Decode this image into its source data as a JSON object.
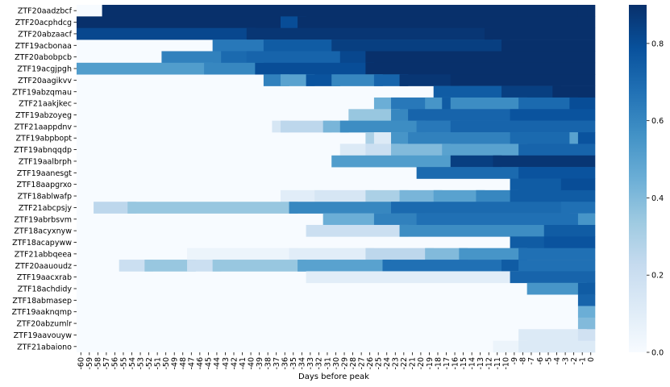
{
  "chart_data": {
    "type": "heatmap",
    "xlabel": "Days before peak",
    "ylabel": "",
    "x_categories": [
      -60,
      -59,
      -58,
      -57,
      -56,
      -55,
      -54,
      -53,
      -52,
      -51,
      -50,
      -49,
      -48,
      -47,
      -46,
      -45,
      -44,
      -43,
      -42,
      -41,
      -40,
      -39,
      -38,
      -37,
      -36,
      -35,
      -34,
      -33,
      -32,
      -31,
      -30,
      -29,
      -28,
      -27,
      -26,
      -25,
      -24,
      -23,
      -22,
      -21,
      -20,
      -19,
      -18,
      -17,
      -16,
      -15,
      -14,
      -13,
      -12,
      -11,
      -10,
      -9,
      -8,
      -7,
      -6,
      -5,
      -4,
      -3,
      -2,
      -1,
      0
    ],
    "x_ticklabels": [
      "-60",
      "-59",
      "-58",
      "-57",
      "-56",
      "-55",
      "-54",
      "-53",
      "-52",
      "-51",
      "-50",
      "-49",
      "-48",
      "-47",
      "-46",
      "-45",
      "-44",
      "-43",
      "-42",
      "-41",
      "-40",
      "-39",
      "-38",
      "-37",
      "-36",
      "-35",
      "-34",
      "-33",
      "-32",
      "-31",
      "-30",
      "-29",
      "-28",
      "-27",
      "-26",
      "-25",
      "-24",
      "-23",
      "-22",
      "-21",
      "-20",
      "-19",
      "-18",
      "-17",
      "-16",
      "-15",
      "-14",
      "-13",
      "-12",
      "-11",
      "-10",
      "-9",
      "-8",
      "-7",
      "-6",
      "-5",
      "-4",
      "-3",
      "-2",
      "-1",
      "0"
    ],
    "colorbar": {
      "min": 0.0,
      "max": 0.9,
      "ticks": [
        0.0,
        0.2,
        0.4,
        0.6,
        0.8
      ],
      "tick_labels": [
        "0.0",
        "0.2",
        "0.4",
        "0.6",
        "0.8"
      ],
      "colormap": "Blues"
    },
    "rows": [
      {
        "name": "ZTF20aadzbcf",
        "segments": [
          [
            -57,
            -1,
            0.92
          ],
          [
            -1,
            0,
            0.92
          ]
        ]
      },
      {
        "name": "ZTF20acphdcg",
        "segments": [
          [
            -60,
            -36,
            0.92
          ],
          [
            -36,
            -34,
            0.8
          ],
          [
            -34,
            0,
            0.92
          ]
        ]
      },
      {
        "name": "ZTF20abzaacf",
        "segments": [
          [
            -60,
            -40,
            0.82
          ],
          [
            -40,
            -12,
            0.88
          ],
          [
            -12,
            0,
            0.92
          ]
        ]
      },
      {
        "name": "ZTF19acbonaa",
        "segments": [
          [
            -44,
            -38,
            0.65
          ],
          [
            -38,
            -30,
            0.75
          ],
          [
            -30,
            -10,
            0.85
          ],
          [
            -10,
            0,
            0.9
          ]
        ]
      },
      {
        "name": "ZTF20abobpcb",
        "segments": [
          [
            -50,
            -43,
            0.62
          ],
          [
            -43,
            -40,
            0.7
          ],
          [
            -40,
            -29,
            0.72
          ],
          [
            -29,
            -26,
            0.82
          ],
          [
            -26,
            0,
            0.9
          ]
        ]
      },
      {
        "name": "ZTF19acgjpgh",
        "segments": [
          [
            -60,
            -45,
            0.52
          ],
          [
            -45,
            -39,
            0.6
          ],
          [
            -39,
            -26,
            0.8
          ],
          [
            -26,
            0,
            0.9
          ]
        ]
      },
      {
        "name": "ZTF20aagikvv",
        "segments": [
          [
            -38,
            -36,
            0.62
          ],
          [
            -36,
            -33,
            0.5
          ],
          [
            -33,
            -30,
            0.78
          ],
          [
            -30,
            -25,
            0.6
          ],
          [
            -25,
            -22,
            0.72
          ],
          [
            -22,
            -16,
            0.88
          ],
          [
            -16,
            0,
            0.92
          ]
        ]
      },
      {
        "name": "ZTF19abzqmau",
        "segments": [
          [
            -18,
            -10,
            0.75
          ],
          [
            -10,
            -4,
            0.85
          ],
          [
            -4,
            0,
            0.9
          ]
        ]
      },
      {
        "name": "ZTF21aakjkec",
        "segments": [
          [
            -25,
            -23,
            0.45
          ],
          [
            -23,
            -19,
            0.65
          ],
          [
            -19,
            -17,
            0.55
          ],
          [
            -17,
            -16,
            0.75
          ],
          [
            -16,
            -8,
            0.58
          ],
          [
            -8,
            -2,
            0.7
          ],
          [
            -2,
            0,
            0.8
          ]
        ]
      },
      {
        "name": "ZTF19abzoyeg",
        "segments": [
          [
            -28,
            -23,
            0.35
          ],
          [
            -23,
            -21,
            0.6
          ],
          [
            -21,
            -9,
            0.72
          ],
          [
            -9,
            0,
            0.78
          ]
        ]
      },
      {
        "name": "ZTF21aappdnv",
        "segments": [
          [
            -37,
            -36,
            0.15
          ],
          [
            -36,
            -31,
            0.25
          ],
          [
            -31,
            -29,
            0.42
          ],
          [
            -29,
            -20,
            0.58
          ],
          [
            -20,
            -16,
            0.65
          ],
          [
            -16,
            -9,
            0.72
          ],
          [
            -9,
            0,
            0.72
          ]
        ]
      },
      {
        "name": "ZTF19abpbopt",
        "segments": [
          [
            -26,
            -25,
            0.3
          ],
          [
            -25,
            -23,
            0.12
          ],
          [
            -23,
            -21,
            0.55
          ],
          [
            -21,
            -9,
            0.62
          ],
          [
            -9,
            -2,
            0.7
          ],
          [
            -2,
            -1,
            0.5
          ],
          [
            -1,
            0,
            0.78
          ]
        ]
      },
      {
        "name": "ZTF19abnqqdp",
        "segments": [
          [
            -29,
            -26,
            0.12
          ],
          [
            -26,
            -23,
            0.2
          ],
          [
            -23,
            -17,
            0.4
          ],
          [
            -17,
            -8,
            0.5
          ],
          [
            -8,
            0,
            0.72
          ]
        ]
      },
      {
        "name": "ZTF19aalbrph",
        "segments": [
          [
            -30,
            -16,
            0.52
          ],
          [
            -16,
            -11,
            0.85
          ],
          [
            -11,
            0,
            0.88
          ]
        ]
      },
      {
        "name": "ZTF19aanesgt",
        "segments": [
          [
            -20,
            -8,
            0.7
          ],
          [
            -8,
            0,
            0.78
          ]
        ]
      },
      {
        "name": "ZTF18aapgrxo",
        "segments": [
          [
            -9,
            -3,
            0.75
          ],
          [
            -3,
            0,
            0.8
          ]
        ]
      },
      {
        "name": "ZTF18ablwafp",
        "segments": [
          [
            -36,
            -32,
            0.1
          ],
          [
            -32,
            -26,
            0.15
          ],
          [
            -26,
            -22,
            0.3
          ],
          [
            -22,
            -18,
            0.42
          ],
          [
            -18,
            -13,
            0.5
          ],
          [
            -13,
            -9,
            0.6
          ],
          [
            -9,
            0,
            0.75
          ]
        ]
      },
      {
        "name": "ZTF21abcpsjy",
        "segments": [
          [
            -58,
            -54,
            0.25
          ],
          [
            -54,
            -35,
            0.35
          ],
          [
            -35,
            -23,
            0.6
          ],
          [
            -23,
            -3,
            0.7
          ],
          [
            -3,
            0,
            0.68
          ]
        ]
      },
      {
        "name": "ZTF19abrbsvm",
        "segments": [
          [
            -31,
            -25,
            0.45
          ],
          [
            -25,
            -20,
            0.62
          ],
          [
            -20,
            -1,
            0.68
          ],
          [
            -1,
            0,
            0.55
          ]
        ]
      },
      {
        "name": "ZTF18acyxnyw",
        "segments": [
          [
            -33,
            -22,
            0.2
          ],
          [
            -22,
            -5,
            0.58
          ],
          [
            -5,
            0,
            0.75
          ]
        ]
      },
      {
        "name": "ZTF18acapyww",
        "segments": [
          [
            -9,
            -5,
            0.75
          ],
          [
            -5,
            0,
            0.78
          ]
        ]
      },
      {
        "name": "ZTF21abbqeea",
        "segments": [
          [
            -47,
            -35,
            0.05
          ],
          [
            -35,
            -26,
            0.1
          ],
          [
            -26,
            -19,
            0.25
          ],
          [
            -19,
            -15,
            0.4
          ],
          [
            -15,
            -8,
            0.55
          ],
          [
            -8,
            0,
            0.68
          ]
        ]
      },
      {
        "name": "ZTF20aauoudz",
        "segments": [
          [
            -55,
            -52,
            0.2
          ],
          [
            -52,
            -47,
            0.35
          ],
          [
            -47,
            -44,
            0.2
          ],
          [
            -44,
            -34,
            0.35
          ],
          [
            -34,
            -24,
            0.5
          ],
          [
            -24,
            -10,
            0.68
          ],
          [
            -10,
            -8,
            0.75
          ],
          [
            -8,
            0,
            0.68
          ]
        ]
      },
      {
        "name": "ZTF19aacxrab",
        "segments": [
          [
            -33,
            -9,
            0.1
          ],
          [
            -9,
            0,
            0.72
          ]
        ]
      },
      {
        "name": "ZTF18achdidy",
        "segments": [
          [
            -7,
            -1,
            0.55
          ],
          [
            -1,
            0,
            0.75
          ]
        ]
      },
      {
        "name": "ZTF18abmasep",
        "segments": [
          [
            -1,
            0,
            0.72
          ]
        ]
      },
      {
        "name": "ZTF19aaknqmp",
        "segments": [
          [
            -1,
            0,
            0.45
          ]
        ]
      },
      {
        "name": "ZTF20abzumlr",
        "segments": [
          [
            -1,
            0,
            0.4
          ]
        ]
      },
      {
        "name": "ZTF19aavouyw",
        "segments": [
          [
            -8,
            -1,
            0.12
          ],
          [
            -1,
            0,
            0.18
          ]
        ]
      },
      {
        "name": "ZTF21abaiono",
        "segments": [
          [
            -11,
            -8,
            0.05
          ],
          [
            -8,
            0,
            0.12
          ]
        ]
      }
    ]
  }
}
